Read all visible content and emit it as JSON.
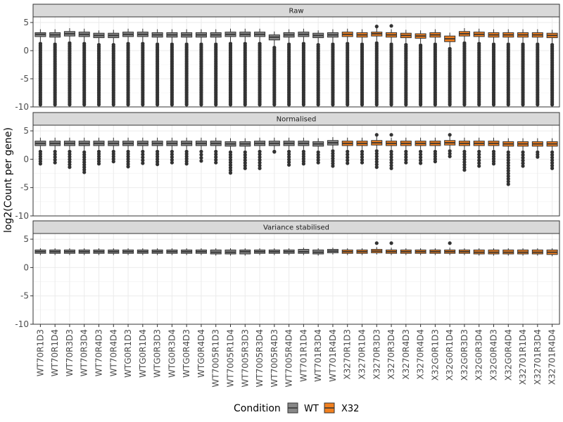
{
  "chart_data": {
    "type": "boxplot",
    "ylabel": "log2(Count per gene)",
    "xlabel": "",
    "ylim": [
      -10,
      6
    ],
    "y_ticks": [
      -10,
      -5,
      0,
      5
    ],
    "grid": true,
    "legend": {
      "title": "Condition",
      "position": "bottom",
      "entries": [
        {
          "name": "WT",
          "color": "#888888"
        },
        {
          "name": "X32",
          "color": "#f2801f"
        }
      ]
    },
    "categories": [
      "WT70R1D3",
      "WT70R1D4",
      "WT70R3D3",
      "WT70R3D4",
      "WT70R4D3",
      "WT70R4D4",
      "WTG0R1D3",
      "WTG0R1D4",
      "WTG0R3D3",
      "WTG0R3D4",
      "WTG0R4D3",
      "WTG0R4D4",
      "WT7005R1D3",
      "WT7005R1D4",
      "WT7005R3D3",
      "WT7005R3D4",
      "WT7005R4D3",
      "WT7005R4D4",
      "WT701R1D4",
      "WT701R3D4",
      "WT701R4D4",
      "X3270R1D3",
      "X3270R1D4",
      "X3270R3D3",
      "X3270R3D4",
      "X3270R4D3",
      "X3270R4D4",
      "X32G0R1D3",
      "X32G0R1D4",
      "X32G0R3D3",
      "X32G0R3D4",
      "X32G0R4D3",
      "X32G0R4D4",
      "X32701R1D4",
      "X32701R3D4",
      "X32701R4D4"
    ],
    "condition": [
      "WT",
      "WT",
      "WT",
      "WT",
      "WT",
      "WT",
      "WT",
      "WT",
      "WT",
      "WT",
      "WT",
      "WT",
      "WT",
      "WT",
      "WT",
      "WT",
      "WT",
      "WT",
      "WT",
      "WT",
      "WT",
      "X32",
      "X32",
      "X32",
      "X32",
      "X32",
      "X32",
      "X32",
      "X32",
      "X32",
      "X32",
      "X32",
      "X32",
      "X32",
      "X32",
      "X32"
    ],
    "panels": [
      {
        "name": "Raw",
        "q1": [
          2.5,
          2.4,
          2.6,
          2.5,
          2.3,
          2.3,
          2.5,
          2.5,
          2.4,
          2.4,
          2.4,
          2.4,
          2.4,
          2.5,
          2.5,
          2.5,
          1.9,
          2.4,
          2.5,
          2.3,
          2.4,
          2.5,
          2.4,
          2.6,
          2.4,
          2.3,
          2.2,
          2.4,
          1.6,
          2.6,
          2.5,
          2.4,
          2.4,
          2.4,
          2.4,
          2.3
        ],
        "median": [
          2.9,
          2.8,
          3.0,
          2.9,
          2.7,
          2.7,
          2.9,
          2.9,
          2.8,
          2.8,
          2.8,
          2.8,
          2.8,
          2.9,
          2.9,
          2.9,
          2.4,
          2.8,
          2.9,
          2.7,
          2.8,
          2.9,
          2.8,
          3.0,
          2.8,
          2.7,
          2.6,
          2.8,
          2.1,
          3.0,
          2.9,
          2.8,
          2.8,
          2.8,
          2.8,
          2.7
        ],
        "q3": [
          3.2,
          3.2,
          3.4,
          3.3,
          3.1,
          3.1,
          3.3,
          3.3,
          3.2,
          3.2,
          3.2,
          3.2,
          3.2,
          3.3,
          3.3,
          3.3,
          2.8,
          3.2,
          3.3,
          3.1,
          3.2,
          3.3,
          3.2,
          3.3,
          3.2,
          3.1,
          3.0,
          3.2,
          2.6,
          3.4,
          3.3,
          3.2,
          3.2,
          3.2,
          3.2,
          3.1
        ],
        "whisker_low": [
          1.6,
          1.5,
          1.7,
          1.6,
          1.4,
          1.4,
          1.6,
          1.6,
          1.5,
          1.5,
          1.5,
          1.5,
          1.5,
          1.6,
          1.6,
          1.6,
          0.9,
          1.5,
          1.6,
          1.4,
          1.5,
          1.6,
          1.5,
          1.7,
          1.5,
          1.4,
          1.3,
          1.5,
          0.7,
          1.7,
          1.6,
          1.5,
          1.5,
          1.5,
          1.5,
          1.4
        ],
        "whisker_high": [
          3.8,
          3.8,
          4.0,
          3.9,
          3.6,
          3.7,
          3.9,
          3.9,
          3.8,
          3.8,
          3.8,
          3.8,
          3.8,
          3.9,
          3.9,
          3.9,
          3.4,
          3.8,
          3.9,
          3.6,
          3.8,
          3.9,
          3.8,
          4.3,
          3.8,
          3.7,
          3.6,
          3.8,
          3.2,
          4.0,
          3.9,
          3.8,
          3.8,
          3.8,
          3.8,
          3.7
        ],
        "outlier_min": -9.6,
        "outlier_top": [
          null,
          null,
          null,
          null,
          null,
          null,
          null,
          null,
          null,
          null,
          null,
          null,
          null,
          null,
          null,
          null,
          null,
          null,
          null,
          null,
          null,
          null,
          null,
          4.3,
          4.4,
          null,
          null,
          null,
          null,
          null,
          null,
          null,
          null,
          null,
          null,
          null
        ]
      },
      {
        "name": "Normalised",
        "q1": [
          2.4,
          2.4,
          2.4,
          2.4,
          2.4,
          2.4,
          2.4,
          2.4,
          2.4,
          2.4,
          2.4,
          2.4,
          2.4,
          2.3,
          2.3,
          2.4,
          2.4,
          2.4,
          2.4,
          2.3,
          2.5,
          2.4,
          2.4,
          2.5,
          2.4,
          2.4,
          2.4,
          2.4,
          2.5,
          2.4,
          2.4,
          2.4,
          2.3,
          2.3,
          2.3,
          2.3
        ],
        "median": [
          2.8,
          2.8,
          2.8,
          2.8,
          2.8,
          2.8,
          2.8,
          2.8,
          2.8,
          2.8,
          2.8,
          2.8,
          2.8,
          2.7,
          2.7,
          2.8,
          2.8,
          2.8,
          2.8,
          2.7,
          2.9,
          2.8,
          2.8,
          2.9,
          2.8,
          2.8,
          2.8,
          2.8,
          2.9,
          2.8,
          2.8,
          2.8,
          2.7,
          2.7,
          2.7,
          2.7
        ],
        "q3": [
          3.2,
          3.2,
          3.2,
          3.2,
          3.2,
          3.2,
          3.2,
          3.2,
          3.2,
          3.2,
          3.2,
          3.2,
          3.2,
          3.1,
          3.1,
          3.2,
          3.2,
          3.2,
          3.2,
          3.1,
          3.3,
          3.2,
          3.2,
          3.3,
          3.2,
          3.2,
          3.2,
          3.2,
          3.3,
          3.2,
          3.2,
          3.2,
          3.1,
          3.1,
          3.1,
          3.1
        ],
        "whisker_low": [
          1.7,
          1.7,
          1.7,
          1.6,
          1.7,
          1.7,
          1.7,
          1.7,
          1.7,
          1.7,
          1.7,
          1.7,
          1.7,
          1.6,
          1.6,
          1.7,
          1.7,
          1.7,
          1.7,
          1.6,
          1.8,
          1.7,
          1.7,
          1.8,
          1.7,
          1.7,
          1.7,
          1.7,
          1.8,
          1.7,
          1.7,
          1.7,
          1.6,
          1.6,
          1.6,
          1.6
        ],
        "whisker_high": [
          3.8,
          3.8,
          3.8,
          3.8,
          3.8,
          3.8,
          3.8,
          3.8,
          3.8,
          3.8,
          3.8,
          3.8,
          3.8,
          3.7,
          3.7,
          3.8,
          3.8,
          3.8,
          3.8,
          3.7,
          3.9,
          3.8,
          3.8,
          4.3,
          3.8,
          3.8,
          3.8,
          3.8,
          4.3,
          3.8,
          3.8,
          3.8,
          3.7,
          3.7,
          3.7,
          3.7
        ],
        "outlier_lowest": [
          -0.8,
          -0.6,
          -1.4,
          -2.3,
          -0.8,
          -0.4,
          -1.3,
          -0.7,
          -0.9,
          -0.6,
          -0.8,
          -0.3,
          -0.6,
          -2.4,
          -1.6,
          -1.6,
          1.3,
          -1.0,
          -0.8,
          -0.6,
          -1.2,
          -0.7,
          -0.6,
          -1.4,
          -1.6,
          -0.6,
          -0.7,
          -0.4,
          0.5,
          -1.9,
          -1.2,
          -0.8,
          -4.4,
          -1.2,
          0.4,
          -1.6
        ],
        "outlier_top": [
          null,
          null,
          null,
          null,
          null,
          null,
          null,
          null,
          null,
          null,
          null,
          null,
          null,
          null,
          null,
          null,
          null,
          null,
          null,
          null,
          null,
          null,
          null,
          4.3,
          4.3,
          null,
          null,
          null,
          4.3,
          null,
          null,
          null,
          null,
          null,
          null,
          null
        ]
      },
      {
        "name": "Variance stabilised",
        "q1": [
          2.5,
          2.5,
          2.5,
          2.5,
          2.5,
          2.5,
          2.5,
          2.5,
          2.5,
          2.5,
          2.5,
          2.5,
          2.4,
          2.4,
          2.4,
          2.5,
          2.5,
          2.5,
          2.5,
          2.4,
          2.6,
          2.5,
          2.5,
          2.6,
          2.5,
          2.5,
          2.5,
          2.5,
          2.5,
          2.5,
          2.4,
          2.4,
          2.4,
          2.4,
          2.4,
          2.3
        ],
        "median": [
          2.8,
          2.8,
          2.8,
          2.8,
          2.8,
          2.8,
          2.8,
          2.8,
          2.8,
          2.8,
          2.8,
          2.8,
          2.7,
          2.7,
          2.8,
          2.8,
          2.8,
          2.8,
          2.8,
          2.7,
          2.9,
          2.8,
          2.8,
          2.9,
          2.8,
          2.8,
          2.8,
          2.8,
          2.8,
          2.8,
          2.7,
          2.7,
          2.7,
          2.7,
          2.7,
          2.7
        ],
        "q3": [
          3.1,
          3.1,
          3.1,
          3.1,
          3.1,
          3.1,
          3.1,
          3.1,
          3.1,
          3.1,
          3.1,
          3.1,
          3.1,
          3.1,
          3.1,
          3.1,
          3.1,
          3.1,
          3.2,
          3.1,
          3.2,
          3.1,
          3.1,
          3.2,
          3.1,
          3.1,
          3.1,
          3.1,
          3.1,
          3.1,
          3.1,
          3.1,
          3.1,
          3.1,
          3.1,
          3.1
        ],
        "whisker_low": [
          2.2,
          2.2,
          2.2,
          2.2,
          2.2,
          2.2,
          2.2,
          2.2,
          2.2,
          2.2,
          2.2,
          2.2,
          2.1,
          2.1,
          2.1,
          2.2,
          2.2,
          2.2,
          2.2,
          2.1,
          2.3,
          2.2,
          2.2,
          2.3,
          2.2,
          2.2,
          2.2,
          2.2,
          2.2,
          2.2,
          2.1,
          2.1,
          2.1,
          2.1,
          2.1,
          2.0
        ],
        "whisker_high": [
          3.4,
          3.4,
          3.4,
          3.4,
          3.4,
          3.4,
          3.4,
          3.4,
          3.4,
          3.4,
          3.4,
          3.4,
          3.4,
          3.4,
          3.4,
          3.4,
          3.4,
          3.4,
          3.5,
          3.4,
          3.5,
          3.4,
          3.4,
          3.6,
          3.5,
          3.4,
          3.4,
          3.4,
          3.5,
          3.4,
          3.4,
          3.4,
          3.4,
          3.4,
          3.4,
          3.4
        ],
        "outlier_top": [
          null,
          null,
          null,
          null,
          null,
          null,
          null,
          null,
          null,
          null,
          null,
          null,
          null,
          null,
          null,
          null,
          null,
          null,
          null,
          null,
          null,
          null,
          null,
          4.3,
          4.3,
          null,
          null,
          null,
          4.3,
          null,
          null,
          null,
          null,
          null,
          null,
          null
        ]
      }
    ]
  }
}
